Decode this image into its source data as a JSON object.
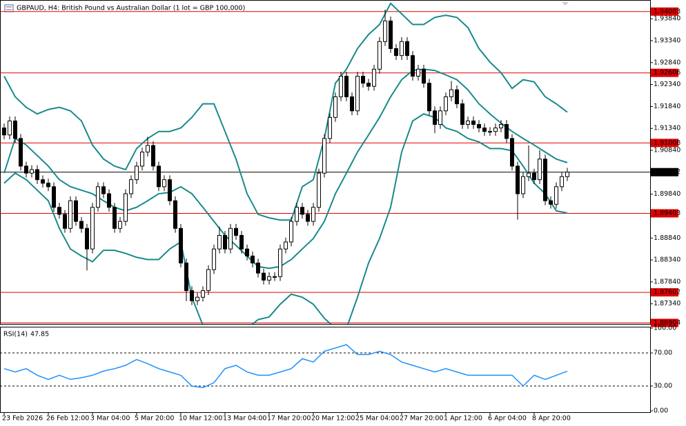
{
  "chart_data": [
    {
      "type": "candlestick",
      "title": "GBPAUD, H4:  British Pound vs Australian Dollar (1 lot = GBP 100,000)",
      "open": [
        1.9135,
        1.9119,
        1.9151,
        1.9111,
        1.9048,
        1.9032,
        1.904,
        1.9017,
        1.9009,
        1.9001,
        1.8954,
        1.8938,
        1.8906,
        1.8969,
        1.8922,
        1.8906,
        1.8859,
        1.8954,
        1.9001,
        1.8985,
        1.8954,
        1.8906,
        1.8922,
        1.8985,
        1.9017,
        1.9048,
        1.908,
        1.9095,
        1.9048,
        1.9001,
        1.9017,
        1.8969,
        1.8906,
        1.8827,
        1.8764,
        1.8741,
        1.8749,
        1.8764,
        1.8812,
        1.8859,
        1.889,
        1.8859,
        1.8906,
        1.889,
        1.8859,
        1.8843,
        1.8827,
        1.8804,
        1.8788,
        1.8796,
        1.8796,
        1.8859,
        1.8875,
        1.8922,
        1.8954,
        1.8938,
        1.8922,
        1.8954,
        1.9032,
        1.9111,
        1.9159,
        1.9206,
        1.9253,
        1.9206,
        1.9174,
        1.9253,
        1.9237,
        1.923,
        1.9269,
        1.9332,
        1.9379,
        1.9316,
        1.93,
        1.9332,
        1.93,
        1.9253,
        1.9269,
        1.9237,
        1.9174,
        1.9143,
        1.9174,
        1.9206,
        1.9222,
        1.919,
        1.9143,
        1.9151,
        1.9143,
        1.9135,
        1.9127,
        1.9127,
        1.9135,
        1.9143,
        1.9111,
        1.9048,
        1.8985,
        1.9024,
        1.9032,
        1.9017,
        1.9064,
        1.8969,
        1.8961,
        1.9001,
        1.9024
      ],
      "high": [
        1.9145,
        1.9161,
        1.9161,
        1.9121,
        1.9058,
        1.905,
        1.905,
        1.9027,
        1.9019,
        1.9011,
        1.8964,
        1.8948,
        1.8979,
        1.8979,
        1.8932,
        1.8916,
        1.8964,
        1.9011,
        1.9011,
        1.8995,
        1.8964,
        1.8932,
        1.8995,
        1.9027,
        1.9058,
        1.909,
        1.9115,
        1.9105,
        1.9058,
        1.9027,
        1.9027,
        1.8979,
        1.8916,
        1.8837,
        1.8774,
        1.8759,
        1.8774,
        1.8822,
        1.8869,
        1.891,
        1.89,
        1.8916,
        1.8916,
        1.89,
        1.8869,
        1.8853,
        1.8837,
        1.8814,
        1.8806,
        1.8806,
        1.8869,
        1.8885,
        1.8932,
        1.8964,
        1.8964,
        1.8948,
        1.8964,
        1.9042,
        1.9121,
        1.9169,
        1.9216,
        1.9263,
        1.9263,
        1.9216,
        1.9263,
        1.9263,
        1.9247,
        1.9279,
        1.9342,
        1.9405,
        1.9389,
        1.9326,
        1.9342,
        1.9342,
        1.931,
        1.9279,
        1.9279,
        1.9247,
        1.9184,
        1.9184,
        1.9216,
        1.9242,
        1.9232,
        1.92,
        1.9161,
        1.9161,
        1.9153,
        1.9145,
        1.9137,
        1.9145,
        1.9153,
        1.9153,
        1.9121,
        1.9058,
        1.9034,
        1.9095,
        1.9042,
        1.9084,
        1.9074,
        1.8979,
        1.9011,
        1.9034,
        1.9044
      ],
      "low": [
        1.9109,
        1.9109,
        1.9101,
        1.9038,
        1.9022,
        1.9022,
        1.9007,
        1.8999,
        1.8991,
        1.8944,
        1.8928,
        1.8896,
        1.8896,
        1.8912,
        1.8896,
        1.881,
        1.8849,
        1.8944,
        1.8975,
        1.8944,
        1.8896,
        1.8896,
        1.8912,
        1.8975,
        1.9007,
        1.9038,
        1.907,
        1.9038,
        1.8991,
        1.8991,
        1.8959,
        1.8896,
        1.8817,
        1.874,
        1.8731,
        1.8731,
        1.8739,
        1.8754,
        1.8802,
        1.8849,
        1.8849,
        1.8849,
        1.888,
        1.8849,
        1.8833,
        1.8817,
        1.8794,
        1.8778,
        1.8778,
        1.8786,
        1.8786,
        1.8849,
        1.8865,
        1.8912,
        1.8928,
        1.8912,
        1.8912,
        1.8944,
        1.9022,
        1.9101,
        1.9149,
        1.9196,
        1.9196,
        1.9164,
        1.9164,
        1.9227,
        1.922,
        1.922,
        1.9259,
        1.9322,
        1.9306,
        1.929,
        1.929,
        1.929,
        1.9243,
        1.9243,
        1.9227,
        1.9164,
        1.9123,
        1.9133,
        1.9164,
        1.9196,
        1.918,
        1.9133,
        1.9133,
        1.9133,
        1.9125,
        1.9117,
        1.9117,
        1.9117,
        1.9125,
        1.9101,
        1.9038,
        1.8926,
        1.8975,
        1.9014,
        1.9007,
        1.9007,
        1.8959,
        1.8951,
        1.8951,
        1.8991,
        1.9014
      ],
      "close": [
        1.9119,
        1.9151,
        1.9111,
        1.9048,
        1.9032,
        1.904,
        1.9017,
        1.9009,
        1.9001,
        1.8954,
        1.8938,
        1.8906,
        1.8969,
        1.8922,
        1.8906,
        1.8859,
        1.8954,
        1.9001,
        1.8985,
        1.8954,
        1.8906,
        1.8922,
        1.8985,
        1.9017,
        1.9048,
        1.908,
        1.9095,
        1.9048,
        1.9001,
        1.9017,
        1.8969,
        1.8906,
        1.8827,
        1.8764,
        1.8741,
        1.8749,
        1.8764,
        1.8812,
        1.8859,
        1.889,
        1.8859,
        1.8906,
        1.889,
        1.8859,
        1.8843,
        1.8827,
        1.8804,
        1.8788,
        1.8796,
        1.8796,
        1.8859,
        1.8875,
        1.8922,
        1.8954,
        1.8938,
        1.8922,
        1.8954,
        1.9032,
        1.9111,
        1.9159,
        1.9206,
        1.9253,
        1.9206,
        1.9174,
        1.9253,
        1.9237,
        1.923,
        1.9269,
        1.9332,
        1.9379,
        1.9316,
        1.93,
        1.9332,
        1.93,
        1.9253,
        1.9269,
        1.9237,
        1.9174,
        1.9143,
        1.9174,
        1.9206,
        1.9222,
        1.919,
        1.9143,
        1.9151,
        1.9143,
        1.9135,
        1.9127,
        1.9127,
        1.9135,
        1.9143,
        1.9111,
        1.9048,
        1.8985,
        1.9024,
        1.9032,
        1.9017,
        1.9064,
        1.8969,
        1.8961,
        1.9001,
        1.9024,
        1.90342
      ],
      "up_color": "#ffffff",
      "down_color": "#000000",
      "candle_outline": "#000000",
      "ylim": [
        1.8688,
        1.9422
      ],
      "yticks": [
        {
          "value": 1.9384,
          "label": "1.93840"
        },
        {
          "value": 1.9334,
          "label": "1.93340"
        },
        {
          "value": 1.9284,
          "label": "1.92840"
        },
        {
          "value": 1.9234,
          "label": "1.92340"
        },
        {
          "value": 1.9184,
          "label": "1.91840"
        },
        {
          "value": 1.9134,
          "label": "1.91340"
        },
        {
          "value": 1.9084,
          "label": "1.90840"
        },
        {
          "value": 1.8984,
          "label": "1.89840"
        },
        {
          "value": 1.8884,
          "label": "1.88840"
        },
        {
          "value": 1.8834,
          "label": "1.88340"
        },
        {
          "value": 1.8784,
          "label": "1.87840"
        },
        {
          "value": 1.8734,
          "label": "1.87340"
        }
      ],
      "levels": [
        1.94003,
        1.92606,
        1.91008,
        1.89403,
        1.87602,
        1.86904
      ],
      "level_color": "#e00000",
      "current_price": 1.90342,
      "bands": {
        "color": "#17898a",
        "x": [
          0,
          2,
          4,
          6,
          8,
          10,
          12,
          14,
          16,
          18,
          20,
          22,
          24,
          26,
          28,
          30,
          32,
          34,
          36,
          38,
          40,
          42,
          44,
          46,
          48,
          50,
          52,
          54,
          56,
          58,
          60,
          62,
          64,
          66,
          68,
          70,
          72,
          74,
          76,
          78,
          80,
          82,
          84,
          86,
          88,
          90,
          92,
          94,
          96,
          98,
          100,
          102
        ],
        "upper": [
          1.9253,
          1.9206,
          1.9182,
          1.9167,
          1.9177,
          1.9182,
          1.9174,
          1.9151,
          1.9096,
          1.9064,
          1.9048,
          1.904,
          1.9088,
          1.9111,
          1.9127,
          1.9127,
          1.9135,
          1.9159,
          1.919,
          1.919,
          1.9127,
          1.9064,
          1.8985,
          1.8938,
          1.893,
          1.8925,
          1.8925,
          1.9001,
          1.9017,
          1.9111,
          1.9237,
          1.9269,
          1.9316,
          1.9348,
          1.9371,
          1.9419,
          1.9395,
          1.9371,
          1.9371,
          1.9387,
          1.9392,
          1.9387,
          1.9364,
          1.9316,
          1.9285,
          1.9261,
          1.9225,
          1.9245,
          1.924,
          1.9206,
          1.919,
          1.9171
        ],
        "middle": [
          1.9032,
          1.9111,
          1.9096,
          1.9072,
          1.9048,
          1.9017,
          1.9001,
          1.8993,
          1.8985,
          1.8969,
          1.8954,
          1.8946,
          1.8954,
          1.8969,
          1.8985,
          1.8988,
          1.9001,
          1.8985,
          1.8954,
          1.8922,
          1.889,
          1.8867,
          1.8843,
          1.8819,
          1.8815,
          1.8819,
          1.8835,
          1.8859,
          1.8883,
          1.8922,
          1.8985,
          1.9032,
          1.908,
          1.9119,
          1.9159,
          1.9206,
          1.9245,
          1.9266,
          1.9269,
          1.9266,
          1.9256,
          1.9245,
          1.9222,
          1.919,
          1.9167,
          1.9146,
          1.9127,
          1.9111,
          1.9096,
          1.908,
          1.9064,
          1.9056
        ],
        "lower": [
          1.9009,
          1.9032,
          1.9017,
          1.8993,
          1.8969,
          1.8906,
          1.8859,
          1.8843,
          1.883,
          1.8856,
          1.8856,
          1.8849,
          1.884,
          1.8835,
          1.8835,
          1.8859,
          1.8875,
          1.8749,
          1.8685,
          1.8638,
          1.8638,
          1.8654,
          1.8678,
          1.8698,
          1.8704,
          1.8733,
          1.8756,
          1.8749,
          1.8733,
          1.8701,
          1.8678,
          1.8678,
          1.8749,
          1.8827,
          1.8883,
          1.8954,
          1.908,
          1.9151,
          1.9167,
          1.9159,
          1.9135,
          1.9127,
          1.9111,
          1.9103,
          1.9088,
          1.9088,
          1.9083,
          1.9048,
          1.9009,
          1.8985,
          1.8946,
          1.8941
        ]
      }
    },
    {
      "type": "line",
      "name": "RSI(14)",
      "color": "#1e8fff",
      "x": [
        0,
        2,
        4,
        6,
        8,
        10,
        12,
        14,
        16,
        18,
        20,
        22,
        24,
        26,
        28,
        30,
        32,
        34,
        36,
        38,
        40,
        42,
        44,
        46,
        48,
        50,
        52,
        54,
        56,
        58,
        60,
        62,
        64,
        66,
        68,
        70,
        72,
        74,
        76,
        78,
        80,
        82,
        84,
        86,
        88,
        90,
        92,
        94,
        96,
        98,
        100,
        102
      ],
      "values": [
        51,
        47,
        51,
        43,
        38,
        43,
        38,
        40,
        43,
        48,
        51,
        55,
        62,
        57,
        51,
        47,
        43,
        30,
        28,
        34,
        51,
        55,
        47,
        43,
        43,
        47,
        51,
        63,
        59,
        72,
        76,
        80,
        68,
        68,
        72,
        68,
        59,
        55,
        51,
        47,
        51,
        47,
        43,
        43,
        43,
        43,
        43,
        30,
        43,
        38,
        43,
        47.85
      ],
      "ylim": [
        0,
        100
      ],
      "yticks": [
        {
          "value": 100,
          "label": "100.00"
        },
        {
          "value": 70,
          "label": "70.00"
        },
        {
          "value": 30,
          "label": "30.00"
        },
        {
          "value": 0,
          "label": "0.00"
        }
      ],
      "guides": [
        70,
        30
      ],
      "xticks": [
        {
          "value": 0,
          "label": "23 Feb 2026"
        },
        {
          "value": 8,
          "label": "26 Feb 12:00"
        },
        {
          "value": 16,
          "label": "3 Mar 04:00"
        },
        {
          "value": 24,
          "label": "5 Mar 20:00"
        },
        {
          "value": 32,
          "label": "10 Mar 12:00"
        },
        {
          "value": 40,
          "label": "13 Mar 04:00"
        },
        {
          "value": 48,
          "label": "17 Mar 20:00"
        },
        {
          "value": 56,
          "label": "20 Mar 12:00"
        },
        {
          "value": 64,
          "label": "25 Mar 04:00"
        },
        {
          "value": 72,
          "label": "27 Mar 20:00"
        },
        {
          "value": 80,
          "label": "1 Apr 12:00"
        },
        {
          "value": 88,
          "label": "6 Apr 04:00"
        },
        {
          "value": 96,
          "label": "8 Apr 20:00"
        }
      ]
    }
  ]
}
